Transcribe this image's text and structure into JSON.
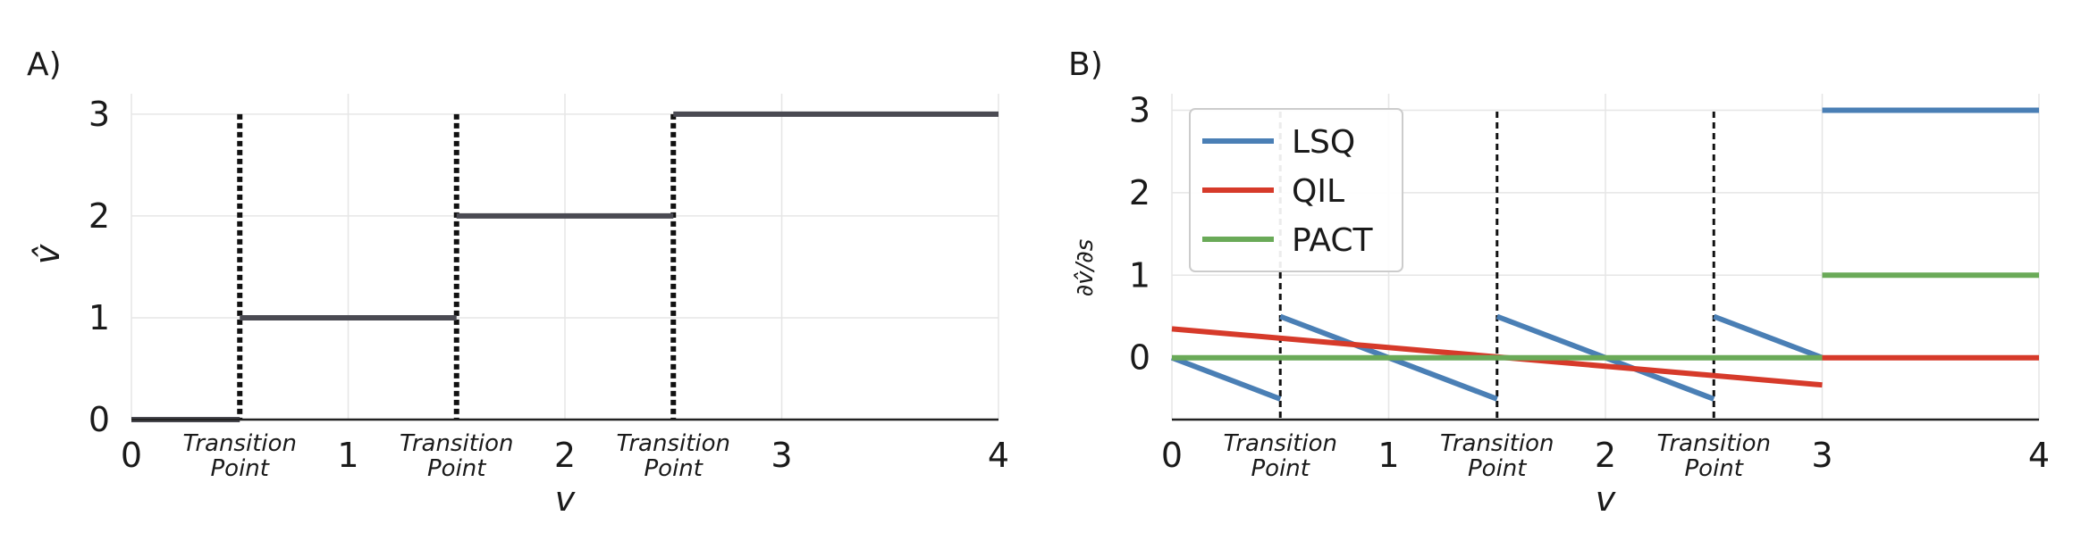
{
  "chart_data": [
    {
      "panel_label": "A)",
      "type": "line",
      "xlabel": "v",
      "ylabel": "v̂",
      "xlim": [
        0,
        4
      ],
      "ylim": [
        0,
        3.2
      ],
      "xticks": [
        0,
        1,
        2,
        3,
        4
      ],
      "yticks": [
        0,
        1,
        2,
        3
      ],
      "grid": true,
      "transition_points": [
        0.5,
        1.5,
        2.5
      ],
      "transition_label": [
        "Transition",
        "Point"
      ],
      "color": "#4a4a52",
      "series": [
        {
          "segments": [
            [
              [
                0,
                0
              ],
              [
                0.5,
                0
              ]
            ],
            [
              [
                0.5,
                1
              ],
              [
                1.5,
                1
              ]
            ],
            [
              [
                1.5,
                2
              ],
              [
                2.5,
                2
              ]
            ],
            [
              [
                2.5,
                3
              ],
              [
                4,
                3
              ]
            ]
          ]
        }
      ]
    },
    {
      "panel_label": "B)",
      "type": "line",
      "xlabel": "v",
      "ylabel": "∂v̂/∂s",
      "xlim": [
        0,
        4
      ],
      "ylim": [
        -0.75,
        3.2
      ],
      "xticks": [
        0,
        1,
        2,
        3,
        4
      ],
      "yticks": [
        0,
        1,
        2,
        3
      ],
      "grid": true,
      "transition_points": [
        0.5,
        1.5,
        2.5
      ],
      "transition_label": [
        "Transition",
        "Point"
      ],
      "legend_position": "top-left",
      "series": [
        {
          "name": "LSQ",
          "color": "#4a7fb5",
          "segments": [
            [
              [
                0,
                0
              ],
              [
                0.5,
                -0.5
              ]
            ],
            [
              [
                0.5,
                0.5
              ],
              [
                1.5,
                -0.5
              ]
            ],
            [
              [
                1.5,
                0.5
              ],
              [
                2.5,
                -0.5
              ]
            ],
            [
              [
                2.5,
                0.5
              ],
              [
                3,
                0
              ]
            ],
            [
              [
                3,
                3
              ],
              [
                4,
                3
              ]
            ]
          ]
        },
        {
          "name": "QIL",
          "color": "#d63a2a",
          "segments": [
            [
              [
                0,
                0.35
              ],
              [
                3,
                -0.33
              ]
            ],
            [
              [
                3,
                0
              ],
              [
                4,
                0
              ]
            ]
          ]
        },
        {
          "name": "PACT",
          "color": "#6aaa58",
          "segments": [
            [
              [
                0,
                0
              ],
              [
                3,
                0
              ]
            ],
            [
              [
                3,
                1
              ],
              [
                4,
                1
              ]
            ]
          ]
        }
      ]
    }
  ]
}
